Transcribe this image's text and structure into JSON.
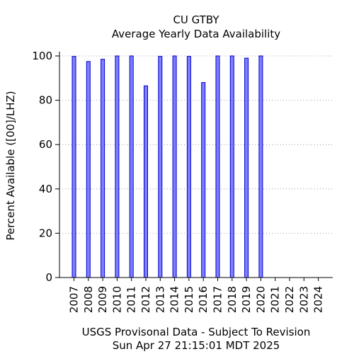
{
  "chart_data": {
    "type": "bar",
    "title": "CU GTBY",
    "subtitle": "Average Yearly Data Availability",
    "ylabel": "Percent Available ([00]/LHZ)",
    "xlabel": "",
    "ylim": [
      0,
      100
    ],
    "yticks": [
      0,
      20,
      40,
      60,
      80,
      100
    ],
    "grid": true,
    "categories": [
      "2007",
      "2008",
      "2009",
      "2010",
      "2011",
      "2012",
      "2013",
      "2014",
      "2015",
      "2016",
      "2017",
      "2018",
      "2019",
      "2020",
      "2021",
      "2022",
      "2023",
      "2024"
    ],
    "values": [
      99.8,
      97.5,
      98.5,
      100,
      100,
      86.5,
      99.8,
      100,
      99.8,
      88,
      100,
      100,
      99,
      100,
      null,
      null,
      null,
      null
    ],
    "bar_color": "#7f7fff",
    "bar_edge_color": "#0000cc",
    "footer_line1": "USGS Provisonal Data - Subject To Revision",
    "footer_line2": "Sun Apr 27 21:15:01 MDT 2025"
  }
}
